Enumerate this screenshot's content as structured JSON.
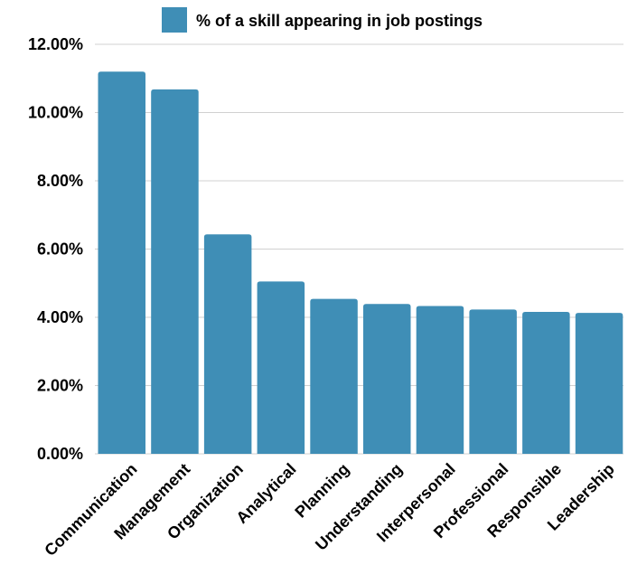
{
  "chart_data": {
    "type": "bar",
    "categories": [
      "Communication",
      "Management",
      "Organization",
      "Analytical",
      "Planning",
      "Understanding",
      "Interpersonal",
      "Professional",
      "Responsible",
      "Leadership"
    ],
    "series": [
      {
        "name": "% of a skill appearing in job postings",
        "values": [
          11.2,
          10.68,
          6.43,
          5.05,
          4.54,
          4.39,
          4.33,
          4.23,
          4.16,
          4.13
        ],
        "color": "#3f8eb6"
      }
    ],
    "ylim": [
      0,
      12
    ],
    "yticks": [
      "0.00%",
      "2.00%",
      "4.00%",
      "6.00%",
      "8.00%",
      "10.00%",
      "12.00%"
    ],
    "ytick_values": [
      0,
      2,
      4,
      6,
      8,
      10,
      12
    ],
    "grid": true,
    "legend_position": "top-center",
    "x_label_rotation": "-45"
  }
}
